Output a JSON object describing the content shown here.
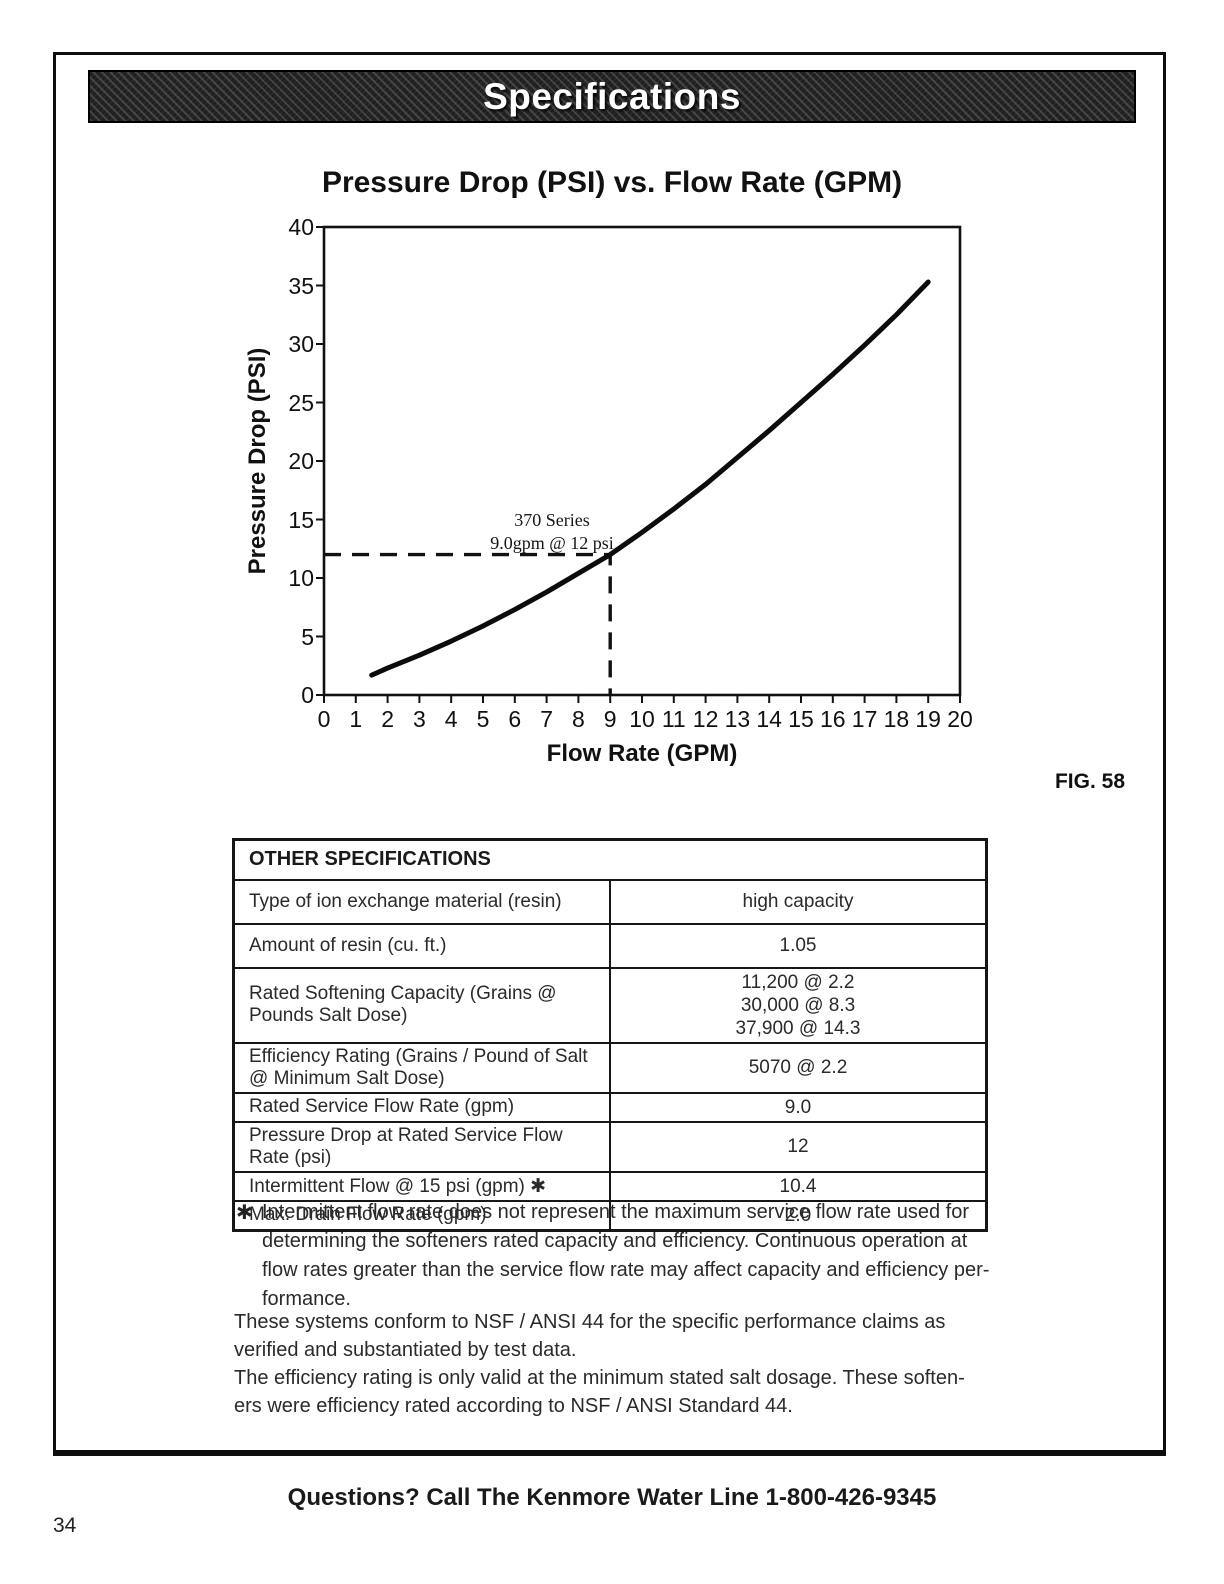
{
  "banner": {
    "title": "Specifications"
  },
  "chart_data": {
    "type": "line",
    "title": "Pressure Drop (PSI) vs. Flow Rate (GPM)",
    "xlabel": "Flow Rate (GPM)",
    "ylabel": "Pressure Drop (PSI)",
    "xlim": [
      0,
      20
    ],
    "ylim": [
      0,
      40
    ],
    "x_ticks": [
      0,
      1,
      2,
      3,
      4,
      5,
      6,
      7,
      8,
      9,
      10,
      11,
      12,
      13,
      14,
      15,
      16,
      17,
      18,
      19,
      20
    ],
    "y_ticks": [
      0,
      5,
      10,
      15,
      20,
      25,
      30,
      35,
      40
    ],
    "grid": false,
    "legend": "none",
    "series": [
      {
        "name": "370 Series",
        "points": [
          [
            1.5,
            1.7
          ],
          [
            2,
            2.3
          ],
          [
            3,
            3.4
          ],
          [
            4,
            4.6
          ],
          [
            5,
            5.9
          ],
          [
            6,
            7.3
          ],
          [
            7,
            8.8
          ],
          [
            8,
            10.4
          ],
          [
            9,
            12
          ],
          [
            10,
            13.9
          ],
          [
            11,
            15.9
          ],
          [
            12,
            18
          ],
          [
            13,
            20.3
          ],
          [
            14,
            22.6
          ],
          [
            15,
            25
          ],
          [
            16,
            27.4
          ],
          [
            17,
            29.9
          ],
          [
            18,
            32.5
          ],
          [
            19,
            35.3
          ]
        ]
      }
    ],
    "annotation": [
      "370 Series",
      "9.0gpm @ 12 psi"
    ],
    "reference_point": {
      "x": 9,
      "y": 12,
      "style": "dashed"
    }
  },
  "fig_label": "FIG. 58",
  "spec_table": {
    "header": "OTHER SPECIFICATIONS",
    "rows": [
      {
        "label": "Type of ion exchange material (resin)",
        "value": "high capacity"
      },
      {
        "label": "Amount of resin (cu. ft.)",
        "value": "1.05"
      },
      {
        "label": "Rated Softening Capacity (Grains @ Pounds Salt Dose)",
        "value": [
          "11,200 @ 2.2",
          "30,000 @ 8.3",
          "37,900 @ 14.3"
        ]
      },
      {
        "label": "Efficiency Rating (Grains / Pound of Salt @ Minimum Salt Dose)",
        "value": "5070 @ 2.2"
      },
      {
        "label": "Rated Service Flow Rate (gpm)",
        "value": "9.0"
      },
      {
        "label": "Pressure Drop at Rated Service Flow Rate (psi)",
        "value": "12"
      },
      {
        "label": "Intermittent Flow @ 15 psi (gpm) ✱",
        "value": "10.4"
      },
      {
        "label": "Max. Drain Flow Rate (gpm)",
        "value": "2.0"
      }
    ]
  },
  "notes": {
    "footnote_marker": "✱",
    "footnote_lines": [
      "Intermittent flow rate does not represent the maximum service flow rate used for",
      "determining the softeners rated capacity and efficiency. Continuous operation at",
      "flow rates greater than the service flow rate may affect capacity and efficiency per-",
      "formance."
    ],
    "paragraph1_lines": [
      "These systems conform to NSF / ANSI 44 for the specific performance claims as",
      "verified and substantiated by test data."
    ],
    "paragraph2_lines": [
      "The efficiency rating is only valid at the minimum stated salt dosage. These soften-",
      "ers were efficiency rated according to NSF / ANSI Standard 44."
    ]
  },
  "footer": {
    "text": "Questions? Call The Kenmore Water Line 1-800-426-9345"
  },
  "page_number": "34"
}
